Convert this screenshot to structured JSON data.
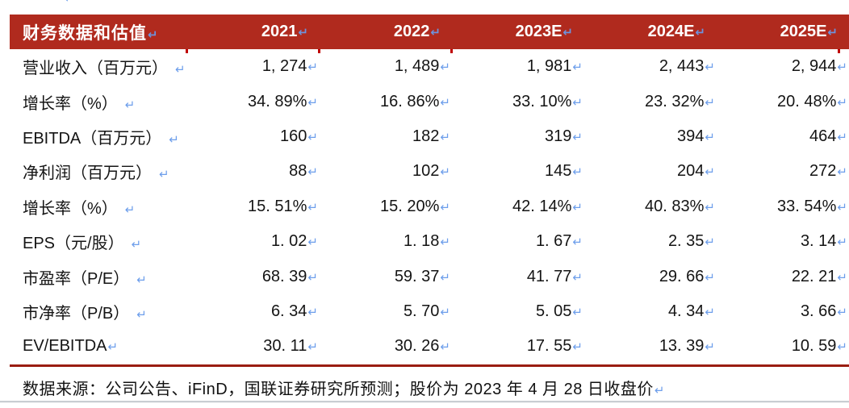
{
  "marks": {
    "pilcrow": "↵"
  },
  "colors": {
    "header_background": "#B02A1E",
    "bottom_rule": "#9A1D11",
    "cell_border_tick": "#C00000",
    "formatting_mark_blue": "#6D9EEB",
    "text": "#141414",
    "window_divider": "#C9CDD2"
  },
  "table": {
    "header": {
      "title": "财务数据和估值",
      "years": [
        "2021",
        "2022",
        "2023E",
        "2024E",
        "2025E"
      ]
    },
    "rows": [
      {
        "label": "营业收入（百万元）",
        "values": [
          "1, 274",
          "1, 489",
          "1, 981",
          "2, 443",
          "2, 944"
        ]
      },
      {
        "label": "增长率（%）",
        "values": [
          "34. 89%",
          "16. 86%",
          "33. 10%",
          "23. 32%",
          "20. 48%"
        ]
      },
      {
        "label": "EBITDA（百万元）",
        "values": [
          "160",
          "182",
          "319",
          "394",
          "464"
        ]
      },
      {
        "label": "净利润（百万元）",
        "values": [
          "88",
          "102",
          "145",
          "204",
          "272"
        ]
      },
      {
        "label": "增长率（%）",
        "values": [
          "15. 51%",
          "15. 20%",
          "42. 14%",
          "40. 83%",
          "33. 54%"
        ]
      },
      {
        "label": "EPS（元/股）",
        "values": [
          "1. 02",
          "1. 18",
          "1. 67",
          "2. 35",
          "3. 14"
        ]
      },
      {
        "label": "市盈率（P/E）",
        "values": [
          "68. 39",
          "59. 37",
          "41. 77",
          "29. 66",
          "22. 21"
        ]
      },
      {
        "label": "市净率（P/B）",
        "values": [
          "6. 34",
          "5. 70",
          "5. 05",
          "4. 34",
          "3. 66"
        ]
      },
      {
        "label": "EV/EBITDA",
        "values": [
          "30. 11",
          "30. 26",
          "17. 55",
          "13. 39",
          "10. 59"
        ]
      }
    ]
  },
  "footer": {
    "source_note": "数据来源：公司公告、iFinD，国联证券研究所预测；股价为 2023 年 4 月 28 日收盘价"
  }
}
